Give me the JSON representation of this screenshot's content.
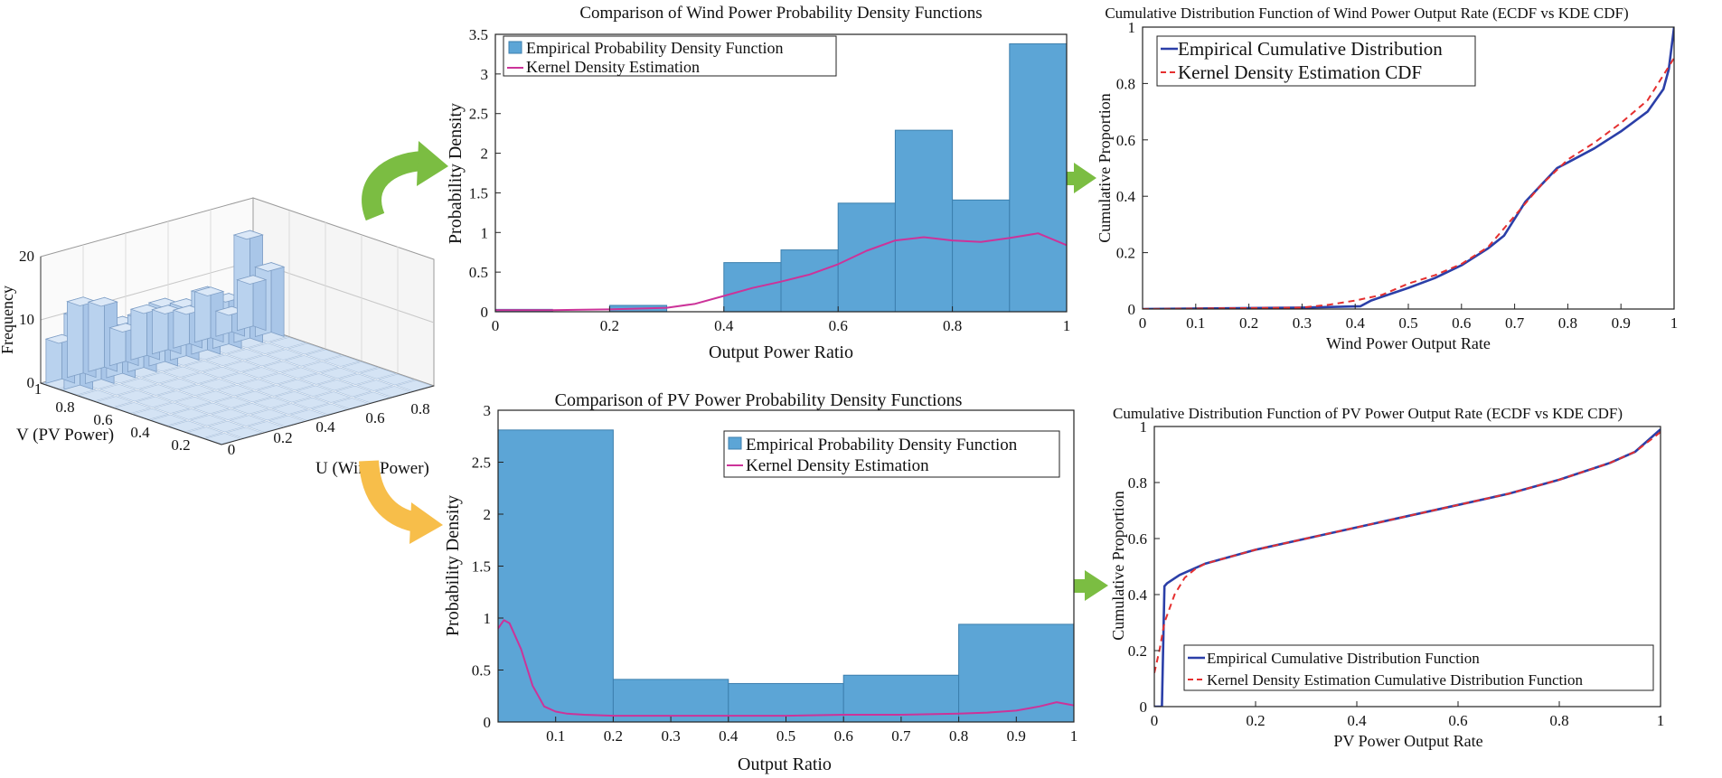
{
  "colors": {
    "bar_fill": "#5ca5d6",
    "bar_stroke": "#3c7fae",
    "kde_pdf": "#cc3399",
    "ecdf": "#2b3fa8",
    "kde_cdf": "#e53030",
    "arrow_green": "#7bbd42",
    "arrow_orange": "#f7be4a",
    "hist3d_fill": "#c9ddf3",
    "hist3d_stroke": "#7f9fc6"
  },
  "chart_data": [
    {
      "id": "hist3d",
      "type": "bar3d",
      "zlabel": "Frequency",
      "xlabel": "U (Wind Power)",
      "ylabel": "V (PV Power)",
      "z_ticks": [
        "0",
        "10",
        "20"
      ],
      "u_ticks": [
        "0",
        "0.2",
        "0.4",
        "0.6",
        "0.8"
      ],
      "v_ticks": [
        "1",
        "0.8",
        "0.6",
        "0.4",
        "0.2"
      ],
      "u_bins": [
        0.05,
        0.15,
        0.25,
        0.35,
        0.45,
        0.55,
        0.65,
        0.75,
        0.85,
        0.95
      ],
      "front_row_frequencies": [
        7,
        12,
        11,
        6,
        8,
        7,
        6,
        8,
        4,
        8
      ],
      "back_row_frequencies": [
        12,
        10,
        9,
        9,
        10,
        9,
        10,
        8,
        17,
        11
      ]
    },
    {
      "id": "wind-pdf",
      "type": "bar",
      "title": "Comparison of Wind Power Probability Density Functions",
      "xlabel": "Output Power Ratio",
      "ylabel": "Probability Density",
      "xlim": [
        0,
        1
      ],
      "ylim": [
        0,
        3.5
      ],
      "xticks": [
        "0",
        "0.2",
        "0.4",
        "0.6",
        "0.8",
        "1"
      ],
      "yticks": [
        "0",
        "0.5",
        "1",
        "1.5",
        "2",
        "2.5",
        "3",
        "3.5"
      ],
      "bin_edges": [
        0,
        0.1,
        0.2,
        0.3,
        0.4,
        0.5,
        0.6,
        0.7,
        0.8,
        0.9,
        1.0
      ],
      "values": [
        0.03,
        0.0,
        0.08,
        0.0,
        0.62,
        0.78,
        1.37,
        2.29,
        1.41,
        3.38
      ],
      "series": [
        {
          "name": "Kernel Density Estimation",
          "x": [
            0,
            0.1,
            0.2,
            0.3,
            0.35,
            0.4,
            0.45,
            0.5,
            0.55,
            0.6,
            0.65,
            0.7,
            0.75,
            0.8,
            0.85,
            0.9,
            0.95,
            1.0
          ],
          "y": [
            0.02,
            0.02,
            0.03,
            0.05,
            0.1,
            0.2,
            0.3,
            0.38,
            0.47,
            0.6,
            0.77,
            0.9,
            0.94,
            0.9,
            0.88,
            0.93,
            0.99,
            0.84
          ]
        }
      ],
      "legend": [
        "Empirical Probability Density Function",
        "Kernel Density Estimation"
      ]
    },
    {
      "id": "wind-cdf",
      "type": "line",
      "title": "Cumulative Distribution Function of Wind Power Output Rate (ECDF vs KDE CDF)",
      "xlabel": "Wind Power Output Rate",
      "ylabel": "Cumulative Proportion",
      "xlim": [
        0,
        1
      ],
      "ylim": [
        0,
        1
      ],
      "xticks": [
        "0",
        "0.1",
        "0.2",
        "0.3",
        "0.4",
        "0.5",
        "0.6",
        "0.7",
        "0.8",
        "0.9",
        "1"
      ],
      "yticks": [
        "0",
        "0.2",
        "0.4",
        "0.6",
        "0.8",
        "1"
      ],
      "series": [
        {
          "name": "Empirical Cumulative Distribution",
          "style": "solid",
          "x": [
            0,
            0.3,
            0.41,
            0.43,
            0.5,
            0.55,
            0.6,
            0.65,
            0.68,
            0.7,
            0.72,
            0.75,
            0.78,
            0.8,
            0.85,
            0.9,
            0.95,
            0.98,
            0.99,
            1.0
          ],
          "y": [
            0,
            0.005,
            0.01,
            0.03,
            0.075,
            0.11,
            0.155,
            0.215,
            0.26,
            0.32,
            0.38,
            0.44,
            0.5,
            0.52,
            0.57,
            0.63,
            0.7,
            0.78,
            0.85,
            1.0
          ]
        },
        {
          "name": "Kernel Density Estimation CDF",
          "style": "dashed",
          "x": [
            0,
            0.3,
            0.35,
            0.4,
            0.45,
            0.5,
            0.55,
            0.6,
            0.65,
            0.7,
            0.75,
            0.8,
            0.85,
            0.9,
            0.95,
            1.0
          ],
          "y": [
            0,
            0.005,
            0.015,
            0.03,
            0.05,
            0.09,
            0.12,
            0.16,
            0.22,
            0.33,
            0.44,
            0.53,
            0.59,
            0.66,
            0.74,
            0.89
          ]
        }
      ],
      "legend": [
        "Empirical Cumulative Distribution",
        "Kernel Density Estimation CDF"
      ]
    },
    {
      "id": "pv-pdf",
      "type": "bar",
      "title": "Comparison of PV Power Probability Density Functions",
      "xlabel": "Output Ratio",
      "ylabel": "Probability Density",
      "xlim": [
        0,
        1
      ],
      "ylim": [
        0,
        3
      ],
      "xticks": [
        "0.1",
        "0.2",
        "0.3",
        "0.4",
        "0.5",
        "0.6",
        "0.7",
        "0.8",
        "0.9",
        "1"
      ],
      "yticks": [
        "0",
        "0.5",
        "1",
        "1.5",
        "2",
        "2.5",
        "3"
      ],
      "bin_edges": [
        0,
        0.2,
        0.4,
        0.6,
        0.8,
        1.0
      ],
      "values": [
        2.81,
        0.41,
        0.37,
        0.45,
        0.94
      ],
      "series": [
        {
          "name": "Kernel Density Estimation",
          "x": [
            0,
            0.01,
            0.02,
            0.04,
            0.06,
            0.08,
            0.1,
            0.12,
            0.15,
            0.2,
            0.3,
            0.4,
            0.5,
            0.6,
            0.7,
            0.8,
            0.85,
            0.9,
            0.94,
            0.97,
            1.0
          ],
          "y": [
            0.9,
            0.98,
            0.95,
            0.7,
            0.35,
            0.15,
            0.1,
            0.08,
            0.07,
            0.06,
            0.06,
            0.06,
            0.06,
            0.07,
            0.07,
            0.08,
            0.09,
            0.11,
            0.15,
            0.19,
            0.16
          ]
        }
      ],
      "legend": [
        "Empirical Probability Density Function",
        "Kernel Density Estimation"
      ]
    },
    {
      "id": "pv-cdf",
      "type": "line",
      "title": "Cumulative Distribution Function of PV Power Output Rate (ECDF vs KDE CDF)",
      "xlabel": "PV Power Output Rate",
      "ylabel": "Cumulative Proportion",
      "xlim": [
        0,
        1
      ],
      "ylim": [
        0,
        1
      ],
      "xticks": [
        "0",
        "0.2",
        "0.4",
        "0.6",
        "0.8",
        "1"
      ],
      "yticks": [
        "0",
        "0.2",
        "0.4",
        "0.6",
        "0.8",
        "1"
      ],
      "series": [
        {
          "name": "Empirical Cumulative Distribution Function",
          "style": "solid",
          "x": [
            0,
            0.015,
            0.02,
            0.025,
            0.05,
            0.1,
            0.2,
            0.3,
            0.4,
            0.5,
            0.6,
            0.7,
            0.8,
            0.9,
            0.95,
            1.0
          ],
          "y": [
            0,
            0,
            0.43,
            0.44,
            0.47,
            0.51,
            0.56,
            0.6,
            0.64,
            0.68,
            0.72,
            0.76,
            0.81,
            0.87,
            0.91,
            0.99
          ]
        },
        {
          "name": "Kernel Density Estimation Cumulative Distribution Function",
          "style": "dashed",
          "x": [
            0,
            0.01,
            0.02,
            0.04,
            0.06,
            0.08,
            0.1,
            0.2,
            0.3,
            0.4,
            0.5,
            0.6,
            0.7,
            0.8,
            0.9,
            0.95,
            1.0
          ],
          "y": [
            0.12,
            0.2,
            0.3,
            0.4,
            0.46,
            0.49,
            0.51,
            0.56,
            0.6,
            0.64,
            0.68,
            0.72,
            0.76,
            0.81,
            0.87,
            0.91,
            0.98
          ]
        }
      ],
      "legend": [
        "Empirical Cumulative Distribution Function",
        "Kernel Density Estimation Cumulative Distribution Function"
      ]
    }
  ]
}
